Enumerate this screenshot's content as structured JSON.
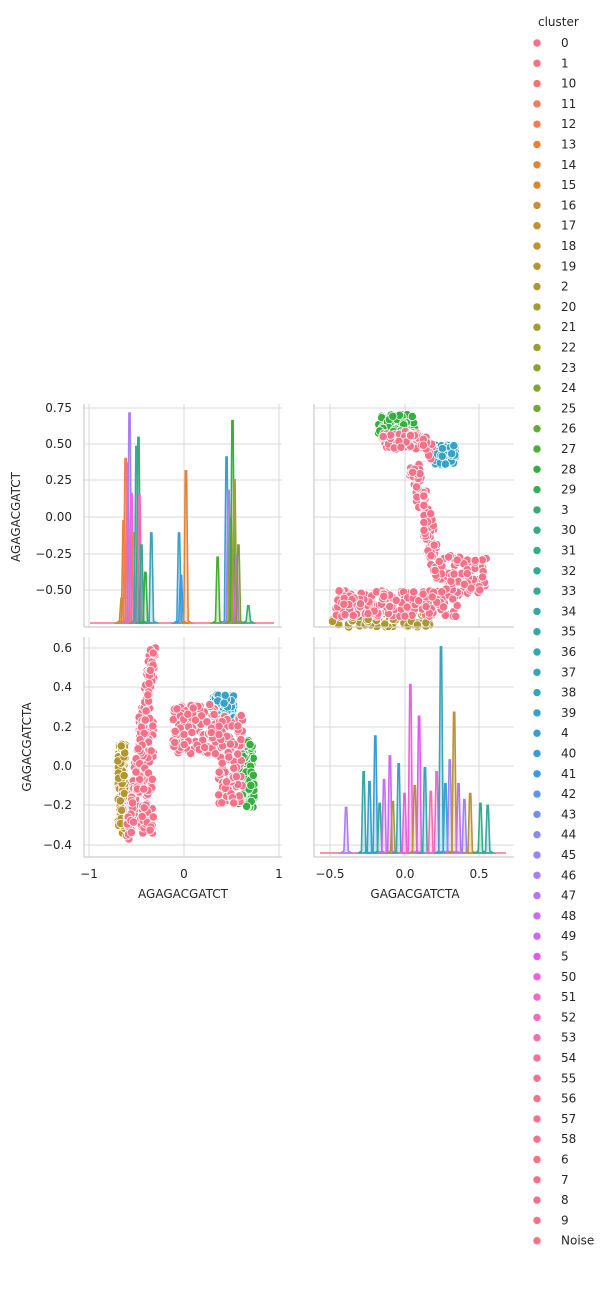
{
  "chart_data": {
    "type": "pairplot",
    "variables": [
      "AGAGACGATCT",
      "GAGACGATCTA"
    ],
    "diag_kind": "kde",
    "offdiag_kind": "scatter",
    "grid": true,
    "legend_placement": "right",
    "legend": {
      "title": "cluster",
      "entries": [
        "0",
        "1",
        "10",
        "11",
        "12",
        "13",
        "14",
        "15",
        "16",
        "17",
        "18",
        "19",
        "2",
        "20",
        "21",
        "22",
        "23",
        "24",
        "25",
        "26",
        "27",
        "28",
        "29",
        "3",
        "30",
        "31",
        "32",
        "33",
        "34",
        "35",
        "36",
        "37",
        "38",
        "39",
        "4",
        "40",
        "41",
        "42",
        "43",
        "44",
        "45",
        "46",
        "47",
        "48",
        "49",
        "5",
        "50",
        "51",
        "52",
        "53",
        "54",
        "55",
        "56",
        "57",
        "58",
        "6",
        "7",
        "8",
        "9",
        "Noise"
      ],
      "colors": [
        "#f77189",
        "#f7717f",
        "#f77474",
        "#f67962",
        "#f57d4f",
        "#e98132",
        "#de8632",
        "#d48a31",
        "#cb8d31",
        "#c39031",
        "#bb9330",
        "#b49630",
        "#ad9830",
        "#a69a30",
        "#9e9d30",
        "#979f30",
        "#8da130",
        "#83a430",
        "#75a730",
        "#62ab30",
        "#4aad30",
        "#33b03e",
        "#33ae5c",
        "#34ad70",
        "#34ac7e",
        "#35ab89",
        "#35aa92",
        "#35a99a",
        "#36a8a2",
        "#36a7a9",
        "#36a6b0",
        "#37a5b7",
        "#37a4be",
        "#38a2c6",
        "#38a0cf",
        "#399dda",
        "#3b99e6",
        "#5f95ec",
        "#7790ef",
        "#8a8bf1",
        "#9b85f2",
        "#aa7ff2",
        "#b777f2",
        "#c56ef2",
        "#d464f2",
        "#e25af2",
        "#f060e1",
        "#f467cd",
        "#f56bbd",
        "#f56eae",
        "#f6719f",
        "#f67192",
        "#f77189",
        "#f77189",
        "#f77189",
        "#f77189",
        "#f77189",
        "#f77189",
        "#f77189",
        "#f77189"
      ]
    },
    "panels": [
      {
        "position": "row1-col1",
        "kind": "kde",
        "xlim": [
          -1,
          1
        ],
        "x_ticks": [
          "−1",
          "0",
          "1"
        ],
        "ylabel": "AGAGACGATCT",
        "y_ticks": [
          "−0.50",
          "−0.25",
          "0.00",
          "0.25",
          "0.50",
          "0.75"
        ],
        "ylim": [
          -0.72,
          0.75
        ],
        "peaks": [
          {
            "x": -0.62,
            "height": -0.53,
            "color": "#b49630"
          },
          {
            "x": -0.6,
            "height": -0.02,
            "color": "#e98132"
          },
          {
            "x": -0.58,
            "height": 0.39,
            "color": "#f57d4f"
          },
          {
            "x": -0.56,
            "height": 0.36,
            "color": "#f77189"
          },
          {
            "x": -0.54,
            "height": 0.69,
            "color": "#aa7ff2"
          },
          {
            "x": -0.52,
            "height": 0.16,
            "color": "#f060e1"
          },
          {
            "x": -0.5,
            "height": -0.1,
            "color": "#f57d4f"
          },
          {
            "x": -0.47,
            "height": 0.47,
            "color": "#36a6b0"
          },
          {
            "x": -0.45,
            "height": 0.53,
            "color": "#34ad70"
          },
          {
            "x": -0.44,
            "height": 0.15,
            "color": "#f56bbd"
          },
          {
            "x": -0.42,
            "height": -0.18,
            "color": "#35aa92"
          },
          {
            "x": -0.38,
            "height": -0.36,
            "color": "#33b03e"
          },
          {
            "x": -0.32,
            "height": -0.1,
            "color": "#37a5b7"
          },
          {
            "x": -0.04,
            "height": -0.1,
            "color": "#38a0cf"
          },
          {
            "x": -0.02,
            "height": -0.38,
            "color": "#3b99e6"
          },
          {
            "x": 0.03,
            "height": 0.31,
            "color": "#e98132"
          },
          {
            "x": 0.35,
            "height": -0.26,
            "color": "#4aad30"
          },
          {
            "x": 0.44,
            "height": 0.4,
            "color": "#399dda"
          },
          {
            "x": 0.46,
            "height": 0.18,
            "color": "#aa7ff2"
          },
          {
            "x": 0.48,
            "height": 0.0,
            "color": "#9e9d30"
          },
          {
            "x": 0.5,
            "height": 0.64,
            "color": "#33b03e"
          },
          {
            "x": 0.52,
            "height": 0.25,
            "color": "#b49630"
          },
          {
            "x": 0.54,
            "height": -0.24,
            "color": "#d464f2"
          },
          {
            "x": 0.56,
            "height": -0.18,
            "color": "#75a730"
          },
          {
            "x": 0.66,
            "height": -0.58,
            "color": "#34ad70"
          }
        ]
      },
      {
        "position": "row1-col2",
        "kind": "scatter",
        "x": "GAGACGATCTA",
        "y": "AGAGACGATCT",
        "xlim": [
          -0.62,
          0.75
        ],
        "ylim": [
          -0.72,
          0.75
        ],
        "groups": [
          {
            "color": "#33b03e",
            "region": "top",
            "x_range": [
              -0.18,
              0.07
            ],
            "y_range": [
              0.5,
              0.68
            ]
          },
          {
            "color": "#38a2c6",
            "region": "upper-right",
            "x_range": [
              0.2,
              0.35
            ],
            "y_range": [
              0.35,
              0.48
            ]
          },
          {
            "color": "#ad9830",
            "region": "bottom",
            "x_range": [
              -0.5,
              0.2
            ],
            "y_range": [
              -0.72,
              -0.6
            ]
          },
          {
            "color": "#f77189",
            "region": "main",
            "x_range": [
              -0.5,
              0.58
            ],
            "y_range": [
              -0.68,
              0.6
            ]
          }
        ]
      },
      {
        "position": "row2-col1",
        "kind": "scatter",
        "x": "AGAGACGATCT",
        "y": "GAGACGATCTA",
        "xlabel": "AGAGACGATCT",
        "ylabel": "GAGACGATCTA",
        "x_ticks": [
          "−1",
          "0",
          "1"
        ],
        "y_ticks": [
          "−0.4",
          "−0.2",
          "0.0",
          "0.2",
          "0.4",
          "0.6"
        ],
        "xlim": [
          -1,
          1
        ],
        "ylim": [
          -0.47,
          0.64
        ],
        "groups": [
          {
            "color": "#b49630",
            "region": "left",
            "x_range": [
              -0.66,
              -0.58
            ],
            "y_range": [
              -0.35,
              0.1
            ]
          },
          {
            "color": "#38a2c6",
            "region": "right-top",
            "x_range": [
              0.3,
              0.52
            ],
            "y_range": [
              0.22,
              0.35
            ]
          },
          {
            "color": "#33b03e",
            "region": "right",
            "x_range": [
              0.55,
              0.72
            ],
            "y_range": [
              -0.22,
              0.12
            ]
          },
          {
            "color": "#f77189",
            "region": "main",
            "x_range": [
              -0.62,
              0.6
            ],
            "y_range": [
              -0.4,
              0.6
            ]
          }
        ]
      },
      {
        "position": "row2-col2",
        "kind": "kde",
        "xlabel": "GAGACGATCTA",
        "x_ticks": [
          "−0.5",
          "0.0",
          "0.5"
        ],
        "xlim": [
          -0.62,
          0.75
        ],
        "ylim": [
          -0.47,
          0.64
        ],
        "peaks": [
          {
            "x": -0.4,
            "height": -0.22,
            "color": "#aa7ff2"
          },
          {
            "x": -0.28,
            "height": -0.04,
            "color": "#36a7a9"
          },
          {
            "x": -0.24,
            "height": -0.09,
            "color": "#38a0cf"
          },
          {
            "x": -0.2,
            "height": 0.14,
            "color": "#399dda"
          },
          {
            "x": -0.17,
            "height": -0.2,
            "color": "#35aa92"
          },
          {
            "x": -0.14,
            "height": -0.08,
            "color": "#c56ef2"
          },
          {
            "x": -0.1,
            "height": 0.04,
            "color": "#d464f2"
          },
          {
            "x": -0.08,
            "height": -0.19,
            "color": "#9e9d30"
          },
          {
            "x": -0.04,
            "height": 0.0,
            "color": "#38a2c6"
          },
          {
            "x": 0.0,
            "height": -0.15,
            "color": "#f060e1"
          },
          {
            "x": 0.04,
            "height": 0.4,
            "color": "#f060e1"
          },
          {
            "x": 0.07,
            "height": -0.11,
            "color": "#ad9830"
          },
          {
            "x": 0.1,
            "height": 0.24,
            "color": "#e25af2"
          },
          {
            "x": 0.14,
            "height": -0.02,
            "color": "#36a6b0"
          },
          {
            "x": 0.18,
            "height": -0.14,
            "color": "#f56eae"
          },
          {
            "x": 0.22,
            "height": -0.04,
            "color": "#f467cd"
          },
          {
            "x": 0.25,
            "height": 0.59,
            "color": "#37a4be"
          },
          {
            "x": 0.28,
            "height": -0.1,
            "color": "#38a0cf"
          },
          {
            "x": 0.31,
            "height": 0.02,
            "color": "#aa7ff2"
          },
          {
            "x": 0.34,
            "height": 0.26,
            "color": "#bb9330"
          },
          {
            "x": 0.37,
            "height": -0.1,
            "color": "#c56ef2"
          },
          {
            "x": 0.41,
            "height": -0.18,
            "color": "#9b85f2"
          },
          {
            "x": 0.45,
            "height": -0.15,
            "color": "#bb9330"
          },
          {
            "x": 0.52,
            "height": -0.2,
            "color": "#35ab89"
          },
          {
            "x": 0.57,
            "height": -0.21,
            "color": "#36a8a2"
          }
        ]
      }
    ]
  }
}
